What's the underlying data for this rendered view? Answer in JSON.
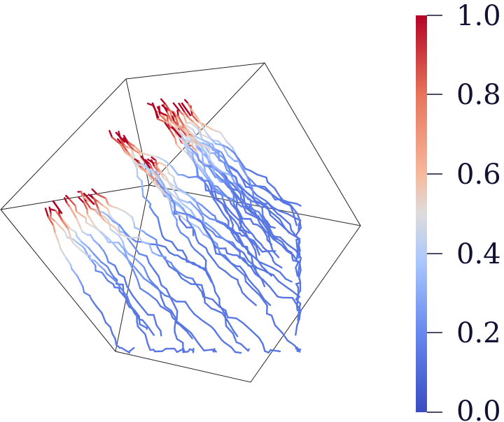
{
  "colorbar": {
    "labels": [
      "1.0",
      "0.8",
      "0.6",
      "0.4",
      "0.2",
      "0.0"
    ],
    "gradient": [
      "#b40426",
      "#e7745b",
      "#f7b89c",
      "#dddcdc",
      "#aac7fd",
      "#6788ee",
      "#3b4cc0"
    ]
  },
  "scene": {
    "box_color": "#222222",
    "strand_colors": {
      "tip": "#b40426",
      "upper": "#f4c5ad",
      "mid": "#c5d6f2",
      "low": "#6f92f3",
      "base": "#5977e3"
    }
  }
}
